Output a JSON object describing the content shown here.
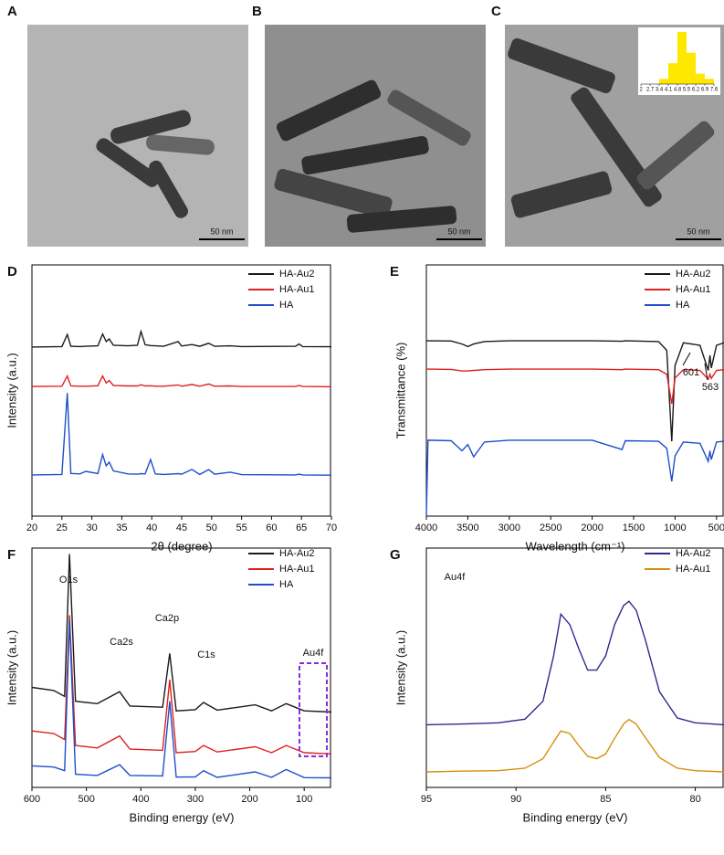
{
  "images": [
    {
      "panel": "A",
      "scale_bar": "50 nm"
    },
    {
      "panel": "B",
      "scale_bar": "50 nm"
    },
    {
      "panel": "C",
      "scale_bar": "50 nm"
    }
  ],
  "chart_data": [
    {
      "type": "line",
      "panel": "D",
      "x_label": "2θ (degree)",
      "y_label": "Intensity (a.u.)",
      "x": [
        20,
        25,
        25.9,
        26.5,
        28,
        29,
        31,
        31.8,
        32.4,
        32.9,
        33.6,
        36,
        37.6,
        38.2,
        38.9,
        39.8,
        40.6,
        42,
        44.4,
        45,
        46.7,
        48,
        49.5,
        50.5,
        53.1,
        55,
        64,
        64.6,
        65.2,
        70
      ],
      "series": [
        {
          "name": "HA-Au2",
          "color": "#1a1a1a",
          "values": [
            67.3,
            67.5,
            72.3,
            67.6,
            67.5,
            67.6,
            67.8,
            72.5,
            69.5,
            70.5,
            68,
            67.8,
            68,
            73.5,
            68.2,
            67.9,
            67.8,
            67.6,
            69.5,
            67.7,
            68.3,
            67.6,
            68.8,
            67.6,
            67.8,
            67.5,
            67.6,
            68.5,
            67.5,
            67.4
          ]
        },
        {
          "name": "HA-Au1",
          "color": "#e02020",
          "values": [
            51.6,
            51.7,
            55.8,
            51.8,
            51.7,
            51.7,
            51.9,
            55.8,
            53,
            54,
            52,
            51.8,
            51.8,
            52.3,
            51.8,
            51.9,
            51.7,
            51.7,
            52.2,
            51.7,
            52.4,
            51.7,
            52.6,
            51.7,
            51.8,
            51.6,
            51.6,
            52,
            51.6,
            51.5
          ]
        },
        {
          "name": "HA",
          "color": "#1f4fc8",
          "values": [
            16.4,
            16.6,
            49,
            17,
            16.8,
            17.8,
            16.9,
            24.5,
            20,
            21.5,
            18,
            16.8,
            16.7,
            16.9,
            16.8,
            22.5,
            16.8,
            16.6,
            16.9,
            16.7,
            18.6,
            16.6,
            18.5,
            16.7,
            17.5,
            16.5,
            16.4,
            16.7,
            16.4,
            16.3
          ]
        }
      ],
      "xlim": [
        20,
        70
      ],
      "xticks": [
        20,
        25,
        30,
        35,
        40,
        45,
        50,
        55,
        60,
        65,
        70
      ],
      "ylim": [
        0,
        100
      ],
      "annotations": []
    },
    {
      "type": "line",
      "panel": "E",
      "x_label": "Wavelength (cm⁻¹)",
      "y_label": "Transmittance (%)",
      "x": [
        4000,
        3980,
        3700,
        3570,
        3500,
        3430,
        3300,
        3000,
        2000,
        1640,
        1600,
        1200,
        1100,
        1040,
        1000,
        900,
        700,
        601,
        580,
        563,
        500,
        410
      ],
      "series": [
        {
          "name": "HA-Au2",
          "color": "#1a1a1a",
          "values": [
            69.8,
            69.8,
            69.7,
            68.5,
            67.5,
            68.5,
            69.5,
            69.8,
            69.8,
            69.6,
            69.8,
            69.5,
            66,
            29.8,
            60,
            69,
            68,
            58,
            64,
            59,
            68,
            69
          ]
        },
        {
          "name": "HA-Au1",
          "color": "#e02020",
          "values": [
            58.5,
            58.5,
            58.4,
            57.8,
            57.8,
            58,
            58.3,
            58.5,
            58.5,
            58.3,
            58.5,
            58.3,
            56.5,
            44.7,
            55,
            58.3,
            58,
            54.5,
            56.5,
            54.8,
            58,
            58.3
          ]
        },
        {
          "name": "HA",
          "color": "#1f4fc8",
          "values": [
            0,
            30.2,
            30,
            26,
            28.5,
            23.6,
            29.5,
            30.2,
            30.2,
            26.5,
            30,
            29.8,
            27,
            13.8,
            24,
            29.5,
            29,
            21.8,
            26,
            22.5,
            29.5,
            29.8
          ]
        }
      ],
      "xlim": [
        4000,
        410
      ],
      "xticks": [
        4000,
        3500,
        3000,
        2500,
        2000,
        1500,
        1000,
        500
      ],
      "ylim": [
        0,
        100
      ],
      "annotations": [
        "601",
        "563"
      ]
    },
    {
      "type": "line",
      "panel": "F",
      "x_label": "Binding energy (eV)",
      "y_label": "Intensity (a.u.)",
      "x": [
        600,
        560,
        540,
        531,
        520,
        480,
        439,
        420,
        360,
        347,
        335,
        300,
        285,
        260,
        190,
        160,
        133,
        100,
        50
      ],
      "series": [
        {
          "name": "HA-Au2",
          "color": "#1a1a1a",
          "values": [
            41.8,
            40.5,
            38,
            97.5,
            36,
            35,
            40,
            34,
            33.5,
            56,
            32,
            32.5,
            35.5,
            32.3,
            34.5,
            32,
            35,
            32,
            31.5
          ]
        },
        {
          "name": "HA-Au1",
          "color": "#e02020",
          "values": [
            23.6,
            22.5,
            20,
            72,
            17.5,
            16.5,
            21.5,
            16,
            15.5,
            45,
            14.5,
            15,
            17.5,
            14.8,
            17,
            14.5,
            17.5,
            14.5,
            14
          ]
        },
        {
          "name": "HA",
          "color": "#1f4fc8",
          "values": [
            9,
            8.5,
            7,
            70,
            5.5,
            5,
            9.5,
            5,
            4.8,
            36,
            4.3,
            4.4,
            7,
            4.2,
            6.5,
            4.2,
            7.5,
            4.1,
            4
          ]
        }
      ],
      "xlim": [
        600,
        50
      ],
      "xticks": [
        600,
        500,
        400,
        300,
        200,
        100
      ],
      "ylim": [
        0,
        100
      ],
      "annotations": [
        "O1s",
        "Ca2s",
        "Ca2p",
        "C1s",
        "Au4f"
      ]
    },
    {
      "type": "line",
      "panel": "G",
      "x_label": "Binding energy (eV)",
      "y_label": "Intensity (a.u.)",
      "x": [
        95,
        93,
        91,
        89.5,
        88.5,
        87.9,
        87.5,
        87,
        86.5,
        86,
        85.5,
        85,
        84.5,
        84,
        83.7,
        83.3,
        82.8,
        82,
        81,
        80,
        78.4
      ],
      "series": [
        {
          "name": "HA-Au2",
          "color": "#2b2b8f",
          "values": [
            26.2,
            26.5,
            27,
            28.5,
            36,
            55,
            72.4,
            68,
            58,
            49,
            49,
            55,
            68,
            76,
            77.8,
            74,
            62,
            40,
            29,
            27,
            26.2
          ]
        },
        {
          "name": "HA-Au1",
          "color": "#d4900a",
          "values": [
            6.5,
            6.8,
            7,
            8,
            12,
            19,
            23.6,
            22.5,
            17.5,
            13,
            12,
            14,
            20.5,
            26.5,
            28.4,
            26.5,
            21,
            12.5,
            8,
            7,
            6.5
          ]
        }
      ],
      "xlim": [
        95,
        78.4
      ],
      "xticks": [
        95,
        90,
        85,
        80
      ],
      "ylim": [
        0,
        100
      ],
      "annotations": [
        "Au4f"
      ]
    },
    {
      "type": "histogram",
      "bins": [
        2,
        2.7,
        3.4,
        4.1,
        4.8,
        5.5,
        6.2,
        6.9,
        7.6
      ],
      "values": [
        0,
        0,
        1,
        4,
        10,
        6,
        2,
        1
      ],
      "color": "#ffe800",
      "xlim": [
        2,
        7.6
      ],
      "xticks": [
        2,
        2.7,
        3.4,
        4.1,
        4.8,
        5.5,
        6.2,
        6.9,
        7.6
      ],
      "ylim": [
        0,
        10
      ]
    }
  ]
}
